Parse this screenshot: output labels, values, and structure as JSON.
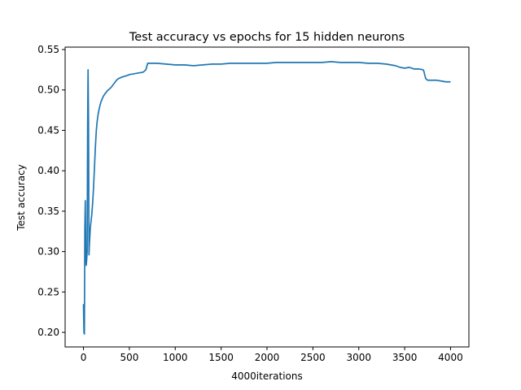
{
  "chart_data": {
    "type": "line",
    "title": "Test accuracy vs epochs for 15 hidden neurons",
    "xlabel": "4000iterations",
    "ylabel": "Test accuracy",
    "xlim": [
      -200,
      4200
    ],
    "ylim": [
      0.182,
      0.553
    ],
    "xticks": [
      0,
      500,
      1000,
      1500,
      2000,
      2500,
      3000,
      3500,
      4000
    ],
    "xtick_labels": [
      "0",
      "500",
      "1000",
      "1500",
      "2000",
      "2500",
      "3000",
      "3500",
      "4000"
    ],
    "yticks": [
      0.2,
      0.25,
      0.3,
      0.35,
      0.4,
      0.45,
      0.5,
      0.55
    ],
    "ytick_labels": [
      "0.20",
      "0.25",
      "0.30",
      "0.35",
      "0.40",
      "0.45",
      "0.50",
      "0.55"
    ],
    "grid": false,
    "line_color": "#1f77b4",
    "series": [
      {
        "x": [
          0,
          5,
          10,
          15,
          20,
          25,
          30,
          35,
          40,
          45,
          50,
          55,
          60,
          65,
          70,
          75,
          80,
          90,
          100,
          110,
          120,
          130,
          140,
          150,
          160,
          170,
          180,
          190,
          200,
          220,
          240,
          260,
          280,
          300,
          320,
          340,
          360,
          380,
          400,
          420,
          450,
          480,
          500,
          550,
          600,
          650,
          680,
          700,
          720,
          800,
          900,
          1000,
          1100,
          1200,
          1300,
          1400,
          1500,
          1600,
          1700,
          1800,
          1900,
          2000,
          2100,
          2200,
          2300,
          2400,
          2500,
          2600,
          2700,
          2800,
          2900,
          3000,
          3100,
          3200,
          3300,
          3400,
          3450,
          3500,
          3550,
          3600,
          3650,
          3700,
          3710,
          3720,
          3730,
          3740,
          3750,
          3800,
          3850,
          3900,
          3950,
          4000
        ],
        "y": [
          0.235,
          0.2,
          0.198,
          0.33,
          0.363,
          0.3,
          0.283,
          0.29,
          0.3,
          0.45,
          0.525,
          0.46,
          0.296,
          0.31,
          0.32,
          0.33,
          0.335,
          0.345,
          0.36,
          0.38,
          0.405,
          0.43,
          0.45,
          0.462,
          0.47,
          0.476,
          0.481,
          0.485,
          0.488,
          0.493,
          0.496,
          0.499,
          0.501,
          0.503,
          0.506,
          0.509,
          0.512,
          0.514,
          0.515,
          0.516,
          0.517,
          0.518,
          0.519,
          0.52,
          0.521,
          0.522,
          0.525,
          0.533,
          0.533,
          0.533,
          0.532,
          0.531,
          0.531,
          0.53,
          0.531,
          0.532,
          0.532,
          0.533,
          0.533,
          0.533,
          0.533,
          0.533,
          0.534,
          0.534,
          0.534,
          0.534,
          0.534,
          0.534,
          0.535,
          0.534,
          0.534,
          0.534,
          0.533,
          0.533,
          0.532,
          0.53,
          0.528,
          0.527,
          0.528,
          0.526,
          0.526,
          0.525,
          0.523,
          0.518,
          0.514,
          0.513,
          0.512,
          0.512,
          0.512,
          0.511,
          0.51,
          0.51
        ]
      }
    ]
  }
}
